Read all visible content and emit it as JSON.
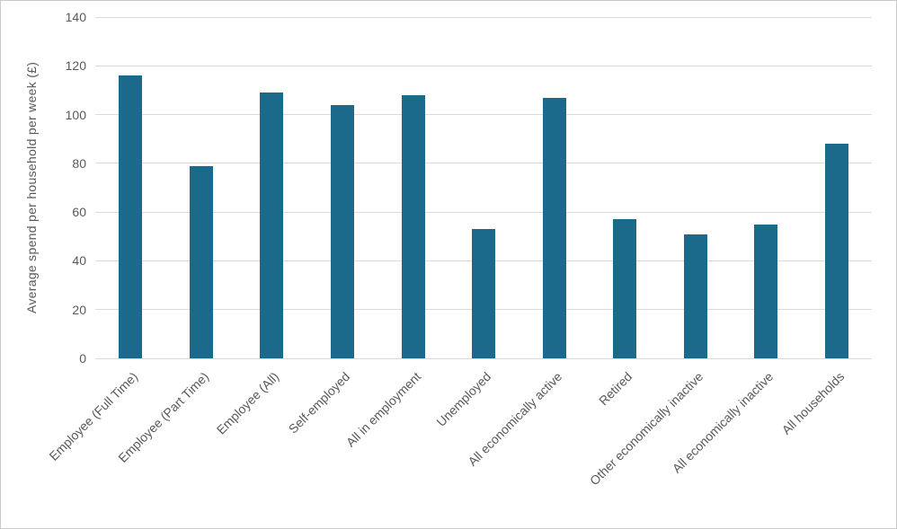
{
  "chart_data": {
    "type": "bar",
    "title": "",
    "xlabel": "",
    "ylabel": "Average spend per household per week (£)",
    "categories": [
      "Employee (Full Time)",
      "Employee (Part Time)",
      "Employee (All)",
      "Self-employed",
      "All in employment",
      "Unemployed",
      "All economically active",
      "Retired",
      "Other economically inactive",
      "All economically inactive",
      "All households"
    ],
    "values": [
      116,
      79,
      109,
      104,
      108,
      53,
      107,
      57,
      51,
      55,
      88
    ],
    "ylim": [
      0,
      140
    ],
    "ytick_step": 20,
    "ytick_labels": [
      "0",
      "20",
      "40",
      "60",
      "80",
      "100",
      "120",
      "140"
    ],
    "bar_color": "#1B6A8B",
    "grid": true,
    "grid_color": "#D9D9D9",
    "text_color": "#595959",
    "legend_position": "none"
  }
}
